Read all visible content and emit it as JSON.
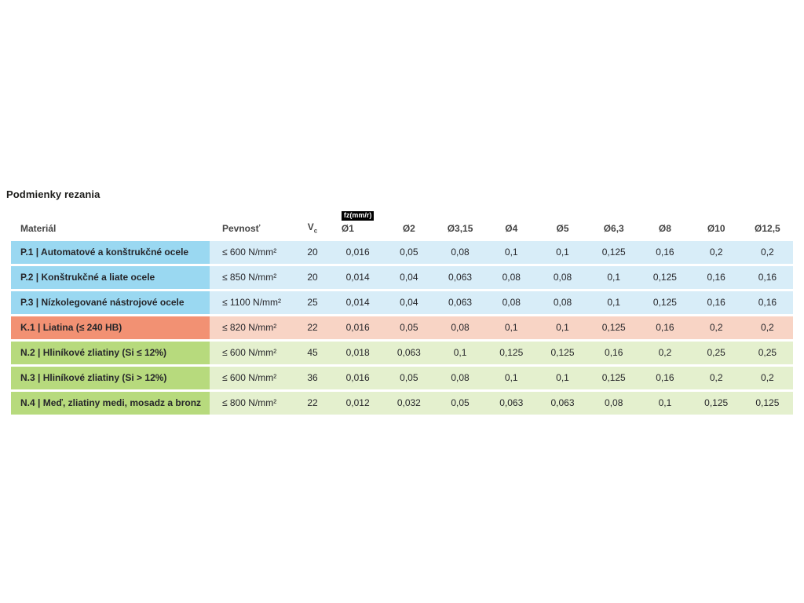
{
  "page": {
    "title": "Podmienky rezania"
  },
  "colors": {
    "blue_dark": "#9ad8f1",
    "blue_light": "#d8edf8",
    "salmon_dark": "#f29173",
    "salmon_light": "#f8d4c5",
    "green_dark": "#b7da7d",
    "green_light": "#e4f0ce",
    "badge_bg": "#000000",
    "badge_text": "#ffffff"
  },
  "table": {
    "headers": {
      "material": "Materiál",
      "pevnost": "Pevnosť",
      "vc_main": "V",
      "vc_sub": "c",
      "fz_badge": "fz(mm/r)",
      "diameters": [
        "Ø1",
        "Ø2",
        "Ø3,15",
        "Ø4",
        "Ø5",
        "Ø6,3",
        "Ø8",
        "Ø10",
        "Ø12,5"
      ]
    },
    "rows": [
      {
        "group": "steel",
        "material": "P.1 | Automatové a konštrukčné ocele",
        "pevnost": "≤ 600 N/mm²",
        "vc": "20",
        "values": [
          "0,016",
          "0,05",
          "0,08",
          "0,1",
          "0,1",
          "0,125",
          "0,16",
          "0,2",
          "0,2"
        ]
      },
      {
        "group": "steel",
        "material": "P.2 | Konštrukčné a liate ocele",
        "pevnost": "≤ 850 N/mm²",
        "vc": "20",
        "values": [
          "0,014",
          "0,04",
          "0,063",
          "0,08",
          "0,08",
          "0,1",
          "0,125",
          "0,16",
          "0,16"
        ]
      },
      {
        "group": "steel",
        "material": "P.3 | Nízkolegované nástrojové ocele",
        "pevnost": "≤ 1100 N/mm²",
        "vc": "25",
        "values": [
          "0,014",
          "0,04",
          "0,063",
          "0,08",
          "0,08",
          "0,1",
          "0,125",
          "0,16",
          "0,16"
        ]
      },
      {
        "group": "castiron",
        "material": "K.1 | Liatina (≤ 240 HB)",
        "pevnost": "≤ 820 N/mm²",
        "vc": "22",
        "values": [
          "0,016",
          "0,05",
          "0,08",
          "0,1",
          "0,1",
          "0,125",
          "0,16",
          "0,2",
          "0,2"
        ]
      },
      {
        "group": "nonferr",
        "material": "N.2 | Hliníkové zliatiny (Si ≤ 12%)",
        "pevnost": "≤ 600 N/mm²",
        "vc": "45",
        "values": [
          "0,018",
          "0,063",
          "0,1",
          "0,125",
          "0,125",
          "0,16",
          "0,2",
          "0,25",
          "0,25"
        ]
      },
      {
        "group": "nonferr",
        "material": "N.3 | Hliníkové zliatiny (Si > 12%)",
        "pevnost": "≤ 600 N/mm²",
        "vc": "36",
        "values": [
          "0,016",
          "0,05",
          "0,08",
          "0,1",
          "0,1",
          "0,125",
          "0,16",
          "0,2",
          "0,2"
        ]
      },
      {
        "group": "nonferr",
        "material": "N.4 | Meď, zliatiny medi, mosadz a bronz",
        "pevnost": "≤ 800 N/mm²",
        "vc": "22",
        "values": [
          "0,012",
          "0,032",
          "0,05",
          "0,063",
          "0,063",
          "0,08",
          "0,1",
          "0,125",
          "0,125"
        ]
      }
    ]
  }
}
